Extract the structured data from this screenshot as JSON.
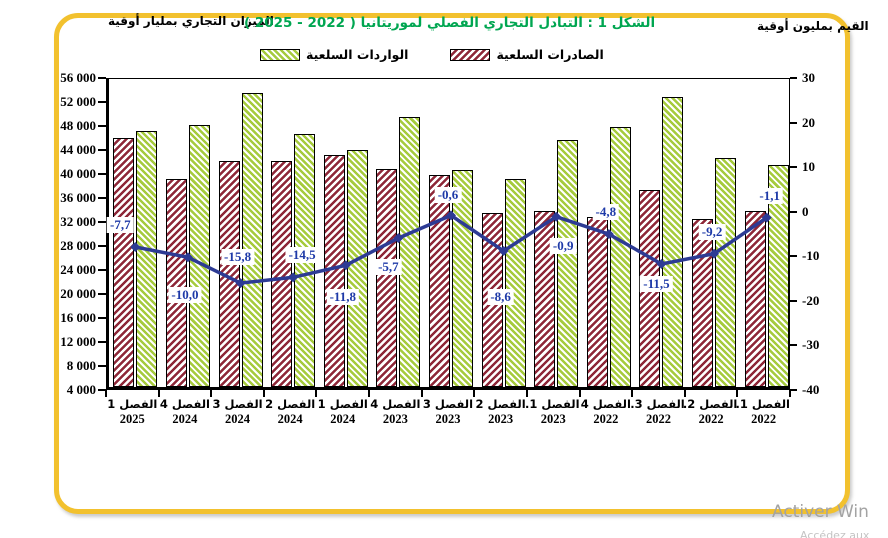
{
  "header": {
    "left_axis_caption": "الميزان التجاري بمليار أوقية",
    "right_axis_caption": "القيم بمليون أوقية",
    "title": "الشكل 1 : التبادل التجاري الفصلي لموريتانيا ( 2022 - 2025 )",
    "title_color": "#00A651"
  },
  "legend": [
    {
      "label": "الواردات السلعية",
      "series": "imports",
      "color": "#A6CB3D",
      "hatch": "back-diagonal"
    },
    {
      "label": "الصادرات السلعية",
      "series": "exports",
      "color": "#8E2738",
      "hatch": "forward-diagonal"
    }
  ],
  "chart_data": {
    "type": "combo (bar + line)",
    "title": "الشكل 1 : التبادل التجاري الفصلي لموريتانيا ( 2022 - 2025 )",
    "categories_quarter": [
      "الفصل 1",
      "الفصل 4",
      "الفصل 3",
      "الفصل 2",
      "الفصل 1",
      "الفصل 4",
      "الفصل 3",
      "الفصل 2",
      "الفصل 1.",
      "الفصل 4",
      "الفصل 3.",
      "الفصل 2.",
      "الفصل 1."
    ],
    "categories_year": [
      "2025",
      "2024",
      "2024",
      "2024",
      "2024",
      "2023",
      "2023",
      "2023",
      "2023",
      "2022",
      "2022",
      "2022",
      "2022"
    ],
    "series": [
      {
        "name": "الصادرات السلعية",
        "type": "bar",
        "color": "#8E2738",
        "values": [
          45500,
          38700,
          41600,
          41600,
          42700,
          40400,
          39300,
          33000,
          33400,
          32400,
          36800,
          32000,
          33300
        ]
      },
      {
        "name": "الواردات السلعية",
        "type": "bar",
        "color": "#A6CB3D",
        "values": [
          46700,
          47700,
          53000,
          46200,
          43500,
          49000,
          40100,
          38700,
          45200,
          47400,
          52400,
          42200,
          41000
        ]
      },
      {
        "name": "الميزان التجاري",
        "type": "line",
        "color": "#2D3B94",
        "values": [
          -7.7,
          -10.0,
          -15.8,
          -14.5,
          -11.8,
          -5.7,
          -0.6,
          -8.6,
          -0.9,
          -4.8,
          -11.5,
          -9.2,
          -1.1
        ],
        "labels": [
          "-7,7",
          "-10,0",
          "-15,8",
          "-14,5",
          "-11,8",
          "-5,7",
          "-0,6",
          "-8,6",
          "-0,9",
          "-4,8",
          "-11,5",
          "-9,2",
          "-1,1"
        ]
      }
    ],
    "axis_left": {
      "min": 4000,
      "max": 56000,
      "step": 4000,
      "tick_labels": [
        "56 000",
        "52 000",
        "48 000",
        "44 000",
        "40 000",
        "36 000",
        "32 000",
        "28 000",
        "24 000",
        "20 000",
        "16 000",
        "12 000",
        "8 000",
        "4 000"
      ]
    },
    "axis_right": {
      "min": -40,
      "max": 30,
      "step": 10,
      "tick_labels": [
        "30",
        "20",
        "10",
        "0",
        "-10",
        "-20",
        "-30",
        "-40"
      ]
    },
    "grid": false,
    "legend_position": "top"
  },
  "watermark": {
    "line1": "Activer Win",
    "line2": "Accédez aux paramètres"
  }
}
